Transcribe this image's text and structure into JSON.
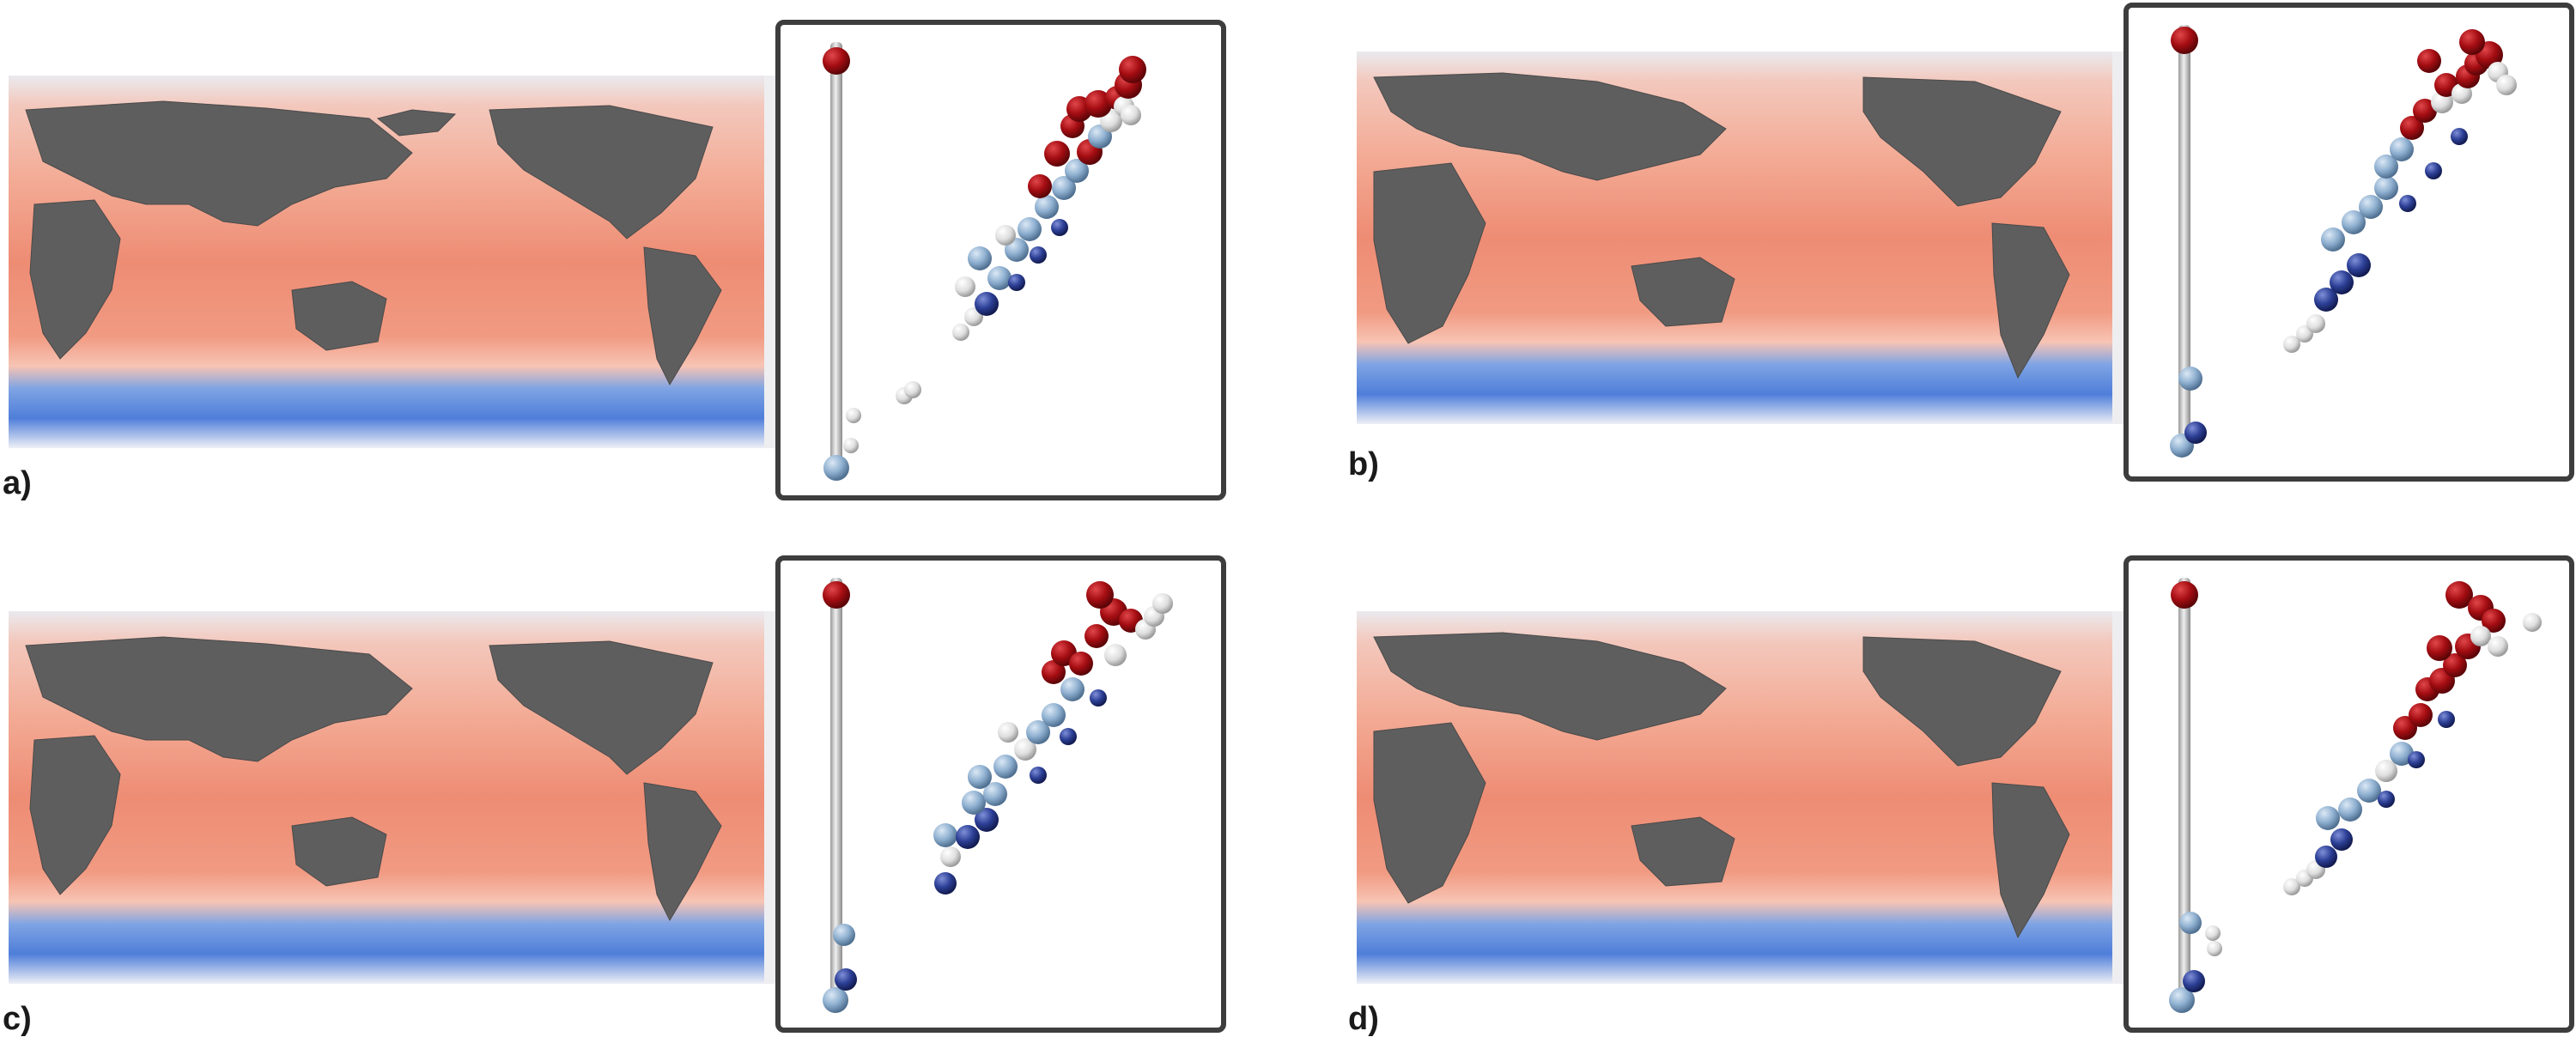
{
  "panels": [
    {
      "label": "a)"
    },
    {
      "label": "b)"
    },
    {
      "label": "c)"
    },
    {
      "label": "d)"
    }
  ],
  "colors": {
    "ocean_warm": "#f0a08a",
    "ocean_hot": "#ea7d68",
    "ocean_cold": "#4f7ed9",
    "ice": "#e4e4e4",
    "land": "#5e5e5e",
    "node_red": "#a40d12",
    "node_lightblue": "#8fb0d0",
    "node_darkblue": "#2c3f95",
    "node_white": "#e6e6e6",
    "stem": "#bdbdbd",
    "frame": "#3d3d3d"
  }
}
